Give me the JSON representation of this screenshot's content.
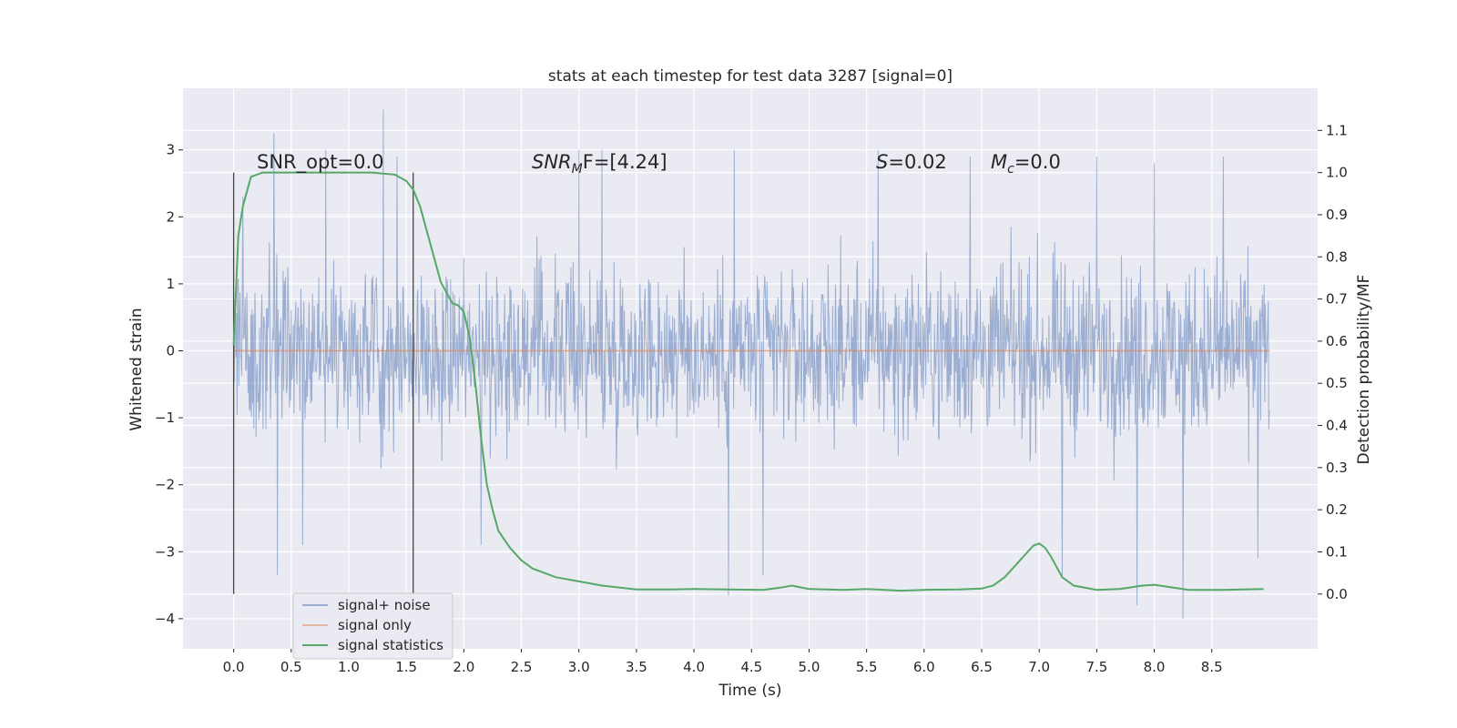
{
  "chart_data": {
    "type": "line",
    "title": "stats at each timestep for test data 3287 [signal=0]",
    "xlabel": "Time (s)",
    "ylabel": "Whitened strain",
    "y2label": "Detection probability/MF",
    "xlim": [
      -0.44,
      9.42
    ],
    "ylim": [
      -4.45,
      3.92
    ],
    "y2lim": [
      -0.13,
      1.2
    ],
    "x_ticks": [
      0.0,
      0.5,
      1.0,
      1.5,
      2.0,
      2.5,
      3.0,
      3.5,
      4.0,
      4.5,
      5.0,
      5.5,
      6.0,
      6.5,
      7.0,
      7.5,
      8.0,
      8.5
    ],
    "x_tick_labels": [
      "0.0",
      "0.5",
      "1.0",
      "1.5",
      "2.0",
      "2.5",
      "3.0",
      "3.5",
      "4.0",
      "4.5",
      "5.0",
      "5.5",
      "6.0",
      "6.5",
      "7.0",
      "7.5",
      "8.0",
      "8.5"
    ],
    "y_ticks": [
      3,
      2,
      1,
      0,
      -1,
      -2,
      -3,
      -4
    ],
    "y_tick_labels": [
      "3",
      "2",
      "1",
      "0",
      "−1",
      "−2",
      "−3",
      "−4"
    ],
    "y2_ticks": [
      1.1,
      1.0,
      0.9,
      0.8,
      0.7,
      0.6,
      0.5,
      0.4,
      0.3,
      0.2,
      0.1,
      0.0
    ],
    "y2_tick_labels": [
      "1.1",
      "1.0",
      "0.9",
      "0.8",
      "0.7",
      "0.6",
      "0.5",
      "0.4",
      "0.3",
      "0.2",
      "0.1",
      "0.0"
    ],
    "grid": true,
    "legend_position": "lower-left",
    "annotations": {
      "snr_opt": "SNR_opt=0.0",
      "snr_mf_main": "SNR",
      "snr_mf_sub": "M",
      "snr_mf_tail": "F=[4.24]",
      "s_main": "S",
      "s_tail": "=0.02",
      "mc_main": "M",
      "mc_sub": "c",
      "mc_tail": "=0.0"
    },
    "vertical_markers": [
      0.0,
      1.56
    ],
    "series": [
      {
        "name": "signal+ noise",
        "color": "#4c72b0",
        "duration": [
          0.0,
          9.0
        ],
        "typical_range": [
          -2.3,
          2.2
        ],
        "bulk_range": [
          -1.4,
          1.6
        ],
        "peaks": [
          [
            0.08,
            2.3
          ],
          [
            0.35,
            3.25
          ],
          [
            0.8,
            3.0
          ],
          [
            1.3,
            3.6
          ],
          [
            1.42,
            2.9
          ],
          [
            3.0,
            3.0
          ],
          [
            3.2,
            3.0
          ],
          [
            4.35,
            3.0
          ],
          [
            5.6,
            3.0
          ],
          [
            6.4,
            2.9
          ],
          [
            7.5,
            2.9
          ],
          [
            8.0,
            2.8
          ],
          [
            8.6,
            2.9
          ],
          [
            0.38,
            -3.35
          ],
          [
            0.6,
            -2.9
          ],
          [
            2.15,
            -2.9
          ],
          [
            4.3,
            -3.65
          ],
          [
            4.6,
            -3.35
          ],
          [
            7.2,
            -3.4
          ],
          [
            7.85,
            -3.8
          ],
          [
            8.25,
            -4.0
          ],
          [
            8.9,
            -3.1
          ]
        ]
      },
      {
        "name": "signal only",
        "color": "#dd8452",
        "x": [
          0.0,
          9.0
        ],
        "y": [
          0.0,
          0.0
        ]
      },
      {
        "name": "signal statistics",
        "color": "#55a868",
        "axis": "right",
        "x": [
          0.0,
          0.04,
          0.08,
          0.15,
          0.25,
          0.4,
          0.8,
          1.2,
          1.4,
          1.5,
          1.56,
          1.62,
          1.7,
          1.8,
          1.9,
          1.95,
          2.0,
          2.05,
          2.1,
          2.15,
          2.2,
          2.25,
          2.3,
          2.4,
          2.5,
          2.6,
          2.7,
          2.8,
          3.0,
          3.2,
          3.5,
          3.8,
          4.0,
          4.3,
          4.6,
          4.75,
          4.85,
          5.0,
          5.3,
          5.5,
          5.8,
          6.0,
          6.3,
          6.5,
          6.6,
          6.7,
          6.8,
          6.9,
          6.95,
          7.0,
          7.05,
          7.1,
          7.2,
          7.3,
          7.5,
          7.7,
          7.9,
          8.0,
          8.1,
          8.3,
          8.6,
          8.95
        ],
        "y": [
          0.59,
          0.85,
          0.92,
          0.99,
          1.0,
          1.0,
          1.0,
          1.0,
          0.995,
          0.98,
          0.96,
          0.92,
          0.84,
          0.74,
          0.69,
          0.685,
          0.67,
          0.61,
          0.5,
          0.37,
          0.26,
          0.2,
          0.15,
          0.11,
          0.08,
          0.06,
          0.05,
          0.04,
          0.03,
          0.02,
          0.011,
          0.011,
          0.012,
          0.011,
          0.01,
          0.015,
          0.02,
          0.012,
          0.01,
          0.012,
          0.008,
          0.01,
          0.011,
          0.013,
          0.02,
          0.04,
          0.07,
          0.1,
          0.115,
          0.12,
          0.11,
          0.09,
          0.04,
          0.02,
          0.01,
          0.012,
          0.02,
          0.022,
          0.018,
          0.01,
          0.01,
          0.012
        ]
      }
    ]
  }
}
